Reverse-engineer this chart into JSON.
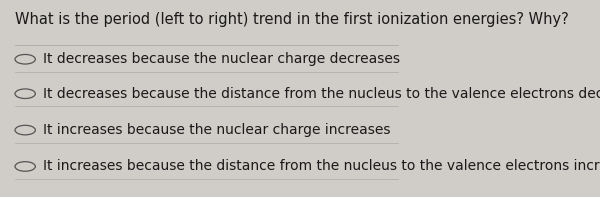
{
  "question": "What is the period (left to right) trend in the first ionization energies? Why?",
  "options": [
    "It decreases because the nuclear charge decreases",
    "It decreases because the distance from the nucleus to the valence electrons decreases",
    "It increases because the nuclear charge increases",
    "It increases because the distance from the nucleus to the valence electrons increases"
  ],
  "background_color": "#d0ccc8",
  "text_color": "#1a1a1a",
  "question_fontsize": 10.5,
  "option_fontsize": 10.0,
  "separator_color": "#aaaaaa",
  "circle_color": "#555555"
}
